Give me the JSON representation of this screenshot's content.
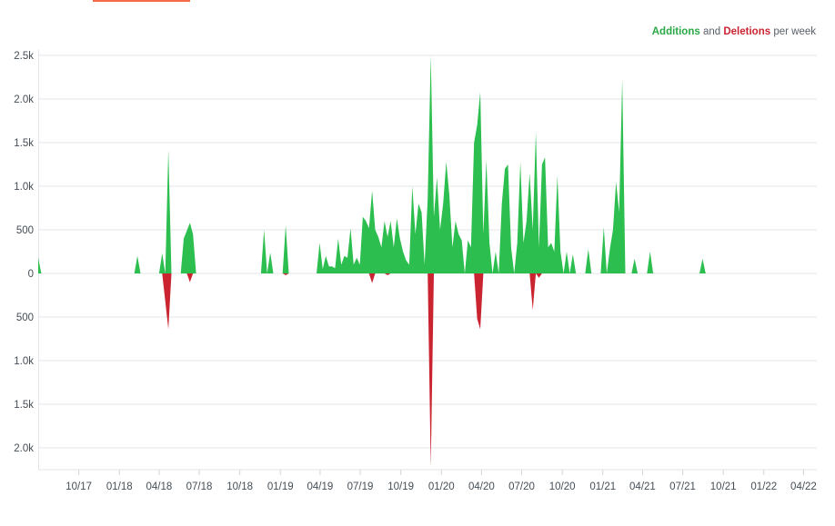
{
  "legend": {
    "additions_label": "Additions",
    "and_text": "and",
    "deletions_label": "Deletions",
    "suffix_text": "per week"
  },
  "colors": {
    "additions": "#2cbe4e",
    "deletions": "#cb2431",
    "additions_text": "#28a745",
    "deletions_text": "#cb2431",
    "grid": "#e1e4e8",
    "top_accent": "#f66a4a"
  },
  "chart_data": {
    "type": "area",
    "title": "",
    "xlabel": "",
    "ylabel": "",
    "y_ticks": [
      {
        "value": 2500,
        "label": "2.5k"
      },
      {
        "value": 2000,
        "label": "2.0k"
      },
      {
        "value": 1500,
        "label": "1.5k"
      },
      {
        "value": 1000,
        "label": "1.0k"
      },
      {
        "value": 500,
        "label": "500"
      },
      {
        "value": 0,
        "label": "0"
      },
      {
        "value": -500,
        "label": "500"
      },
      {
        "value": -1000,
        "label": "1.0k"
      },
      {
        "value": -1500,
        "label": "1.5k"
      },
      {
        "value": -2000,
        "label": "2.0k"
      }
    ],
    "ylim": [
      -2250,
      2500
    ],
    "xlim": [
      "2017-07-01",
      "2022-05-01"
    ],
    "x_ticks": [
      {
        "date": "2017-10-01",
        "label": "10/17"
      },
      {
        "date": "2018-01-01",
        "label": "01/18"
      },
      {
        "date": "2018-04-01",
        "label": "04/18"
      },
      {
        "date": "2018-07-01",
        "label": "07/18"
      },
      {
        "date": "2018-10-01",
        "label": "10/18"
      },
      {
        "date": "2019-01-01",
        "label": "01/19"
      },
      {
        "date": "2019-04-01",
        "label": "04/19"
      },
      {
        "date": "2019-07-01",
        "label": "07/19"
      },
      {
        "date": "2019-10-01",
        "label": "10/19"
      },
      {
        "date": "2020-01-01",
        "label": "01/20"
      },
      {
        "date": "2020-04-01",
        "label": "04/20"
      },
      {
        "date": "2020-07-01",
        "label": "07/20"
      },
      {
        "date": "2020-10-01",
        "label": "10/20"
      },
      {
        "date": "2021-01-01",
        "label": "01/21"
      },
      {
        "date": "2021-04-01",
        "label": "04/21"
      },
      {
        "date": "2021-07-01",
        "label": "07/21"
      },
      {
        "date": "2021-10-01",
        "label": "10/21"
      },
      {
        "date": "2022-01-01",
        "label": "01/22"
      },
      {
        "date": "2022-04-01",
        "label": "04/22"
      }
    ],
    "grid": true,
    "legend_position": "top-right",
    "series": [
      {
        "name": "Additions",
        "points": [
          [
            "2017-07-01",
            180
          ],
          [
            "2017-07-08",
            0
          ],
          [
            "2018-02-04",
            0
          ],
          [
            "2018-02-11",
            200
          ],
          [
            "2018-02-18",
            0
          ],
          [
            "2018-04-01",
            0
          ],
          [
            "2018-04-08",
            230
          ],
          [
            "2018-04-15",
            0
          ],
          [
            "2018-04-22",
            1420
          ],
          [
            "2018-04-29",
            0
          ],
          [
            "2018-05-20",
            0
          ],
          [
            "2018-05-27",
            400
          ],
          [
            "2018-06-03",
            490
          ],
          [
            "2018-06-10",
            580
          ],
          [
            "2018-06-17",
            450
          ],
          [
            "2018-06-24",
            0
          ],
          [
            "2018-11-18",
            0
          ],
          [
            "2018-11-25",
            500
          ],
          [
            "2018-12-02",
            0
          ],
          [
            "2018-12-09",
            240
          ],
          [
            "2018-12-16",
            0
          ],
          [
            "2019-01-06",
            0
          ],
          [
            "2019-01-13",
            550
          ],
          [
            "2019-01-20",
            0
          ],
          [
            "2019-03-24",
            0
          ],
          [
            "2019-03-31",
            350
          ],
          [
            "2019-04-07",
            50
          ],
          [
            "2019-04-14",
            200
          ],
          [
            "2019-04-21",
            80
          ],
          [
            "2019-04-28",
            80
          ],
          [
            "2019-05-05",
            60
          ],
          [
            "2019-05-12",
            400
          ],
          [
            "2019-05-19",
            100
          ],
          [
            "2019-05-26",
            200
          ],
          [
            "2019-06-02",
            180
          ],
          [
            "2019-06-09",
            520
          ],
          [
            "2019-06-16",
            100
          ],
          [
            "2019-06-23",
            180
          ],
          [
            "2019-06-30",
            100
          ],
          [
            "2019-07-07",
            650
          ],
          [
            "2019-07-14",
            600
          ],
          [
            "2019-07-21",
            520
          ],
          [
            "2019-07-28",
            950
          ],
          [
            "2019-08-04",
            500
          ],
          [
            "2019-08-11",
            420
          ],
          [
            "2019-08-18",
            300
          ],
          [
            "2019-08-25",
            600
          ],
          [
            "2019-09-01",
            420
          ],
          [
            "2019-09-08",
            600
          ],
          [
            "2019-09-15",
            300
          ],
          [
            "2019-09-22",
            630
          ],
          [
            "2019-09-29",
            400
          ],
          [
            "2019-10-06",
            250
          ],
          [
            "2019-10-13",
            150
          ],
          [
            "2019-10-20",
            100
          ],
          [
            "2019-10-27",
            1000
          ],
          [
            "2019-11-03",
            450
          ],
          [
            "2019-11-10",
            800
          ],
          [
            "2019-11-17",
            700
          ],
          [
            "2019-11-24",
            100
          ],
          [
            "2019-12-01",
            850
          ],
          [
            "2019-12-08",
            2500
          ],
          [
            "2019-12-15",
            650
          ],
          [
            "2019-12-22",
            1100
          ],
          [
            "2019-12-29",
            500
          ],
          [
            "2020-01-05",
            800
          ],
          [
            "2020-01-12",
            1280
          ],
          [
            "2020-01-19",
            900
          ],
          [
            "2020-01-26",
            300
          ],
          [
            "2020-02-02",
            600
          ],
          [
            "2020-02-09",
            450
          ],
          [
            "2020-02-16",
            380
          ],
          [
            "2020-02-23",
            0
          ],
          [
            "2020-03-01",
            380
          ],
          [
            "2020-03-08",
            300
          ],
          [
            "2020-03-15",
            1500
          ],
          [
            "2020-03-22",
            1700
          ],
          [
            "2020-03-29",
            2080
          ],
          [
            "2020-04-05",
            450
          ],
          [
            "2020-04-12",
            1300
          ],
          [
            "2020-04-19",
            350
          ],
          [
            "2020-04-26",
            0
          ],
          [
            "2020-05-03",
            250
          ],
          [
            "2020-05-10",
            0
          ],
          [
            "2020-05-17",
            800
          ],
          [
            "2020-05-24",
            1200
          ],
          [
            "2020-05-31",
            1250
          ],
          [
            "2020-06-07",
            300
          ],
          [
            "2020-06-14",
            0
          ],
          [
            "2020-06-21",
            350
          ],
          [
            "2020-06-28",
            1280
          ],
          [
            "2020-07-05",
            350
          ],
          [
            "2020-07-12",
            600
          ],
          [
            "2020-07-19",
            1150
          ],
          [
            "2020-07-26",
            500
          ],
          [
            "2020-08-02",
            1620
          ],
          [
            "2020-08-09",
            300
          ],
          [
            "2020-08-16",
            1250
          ],
          [
            "2020-08-23",
            1330
          ],
          [
            "2020-08-30",
            300
          ],
          [
            "2020-09-06",
            350
          ],
          [
            "2020-09-13",
            250
          ],
          [
            "2020-09-20",
            1120
          ],
          [
            "2020-09-27",
            250
          ],
          [
            "2020-10-04",
            0
          ],
          [
            "2020-10-11",
            250
          ],
          [
            "2020-10-18",
            0
          ],
          [
            "2020-10-25",
            220
          ],
          [
            "2020-11-01",
            0
          ],
          [
            "2020-11-22",
            0
          ],
          [
            "2020-11-29",
            280
          ],
          [
            "2020-12-06",
            0
          ],
          [
            "2020-12-27",
            0
          ],
          [
            "2021-01-03",
            530
          ],
          [
            "2021-01-10",
            0
          ],
          [
            "2021-01-17",
            280
          ],
          [
            "2021-01-24",
            500
          ],
          [
            "2021-01-31",
            1050
          ],
          [
            "2021-02-07",
            700
          ],
          [
            "2021-02-14",
            2230
          ],
          [
            "2021-02-21",
            0
          ],
          [
            "2021-03-07",
            0
          ],
          [
            "2021-03-14",
            170
          ],
          [
            "2021-03-21",
            0
          ],
          [
            "2021-04-11",
            0
          ],
          [
            "2021-04-18",
            250
          ],
          [
            "2021-04-25",
            0
          ],
          [
            "2021-08-08",
            0
          ],
          [
            "2021-08-15",
            170
          ],
          [
            "2021-08-22",
            0
          ]
        ]
      },
      {
        "name": "Deletions",
        "points": [
          [
            "2018-04-08",
            0
          ],
          [
            "2018-04-22",
            -640
          ],
          [
            "2018-04-29",
            0
          ],
          [
            "2018-06-03",
            0
          ],
          [
            "2018-06-10",
            -100
          ],
          [
            "2018-06-17",
            0
          ],
          [
            "2019-01-06",
            0
          ],
          [
            "2019-01-13",
            -20
          ],
          [
            "2019-01-20",
            0
          ],
          [
            "2019-07-21",
            0
          ],
          [
            "2019-07-28",
            -110
          ],
          [
            "2019-08-04",
            0
          ],
          [
            "2019-08-25",
            0
          ],
          [
            "2019-09-01",
            -20
          ],
          [
            "2019-09-08",
            0
          ],
          [
            "2019-12-01",
            0
          ],
          [
            "2019-12-08",
            -2220
          ],
          [
            "2019-12-15",
            0
          ],
          [
            "2020-03-15",
            0
          ],
          [
            "2020-03-22",
            -520
          ],
          [
            "2020-03-29",
            -640
          ],
          [
            "2020-04-05",
            0
          ],
          [
            "2020-07-19",
            0
          ],
          [
            "2020-07-26",
            -420
          ],
          [
            "2020-08-02",
            0
          ],
          [
            "2020-08-09",
            -50
          ],
          [
            "2020-08-16",
            0
          ]
        ]
      }
    ]
  }
}
